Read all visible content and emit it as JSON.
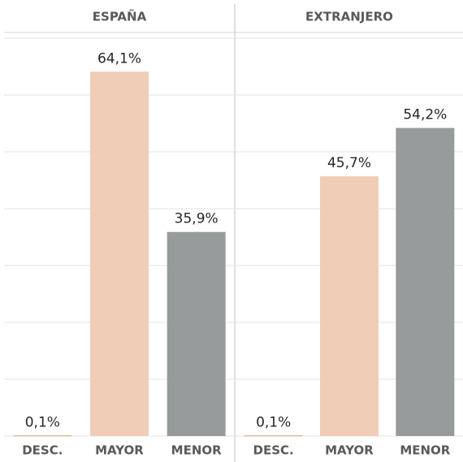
{
  "chart_data": [
    {
      "type": "bar",
      "title": "ESPAÑA",
      "categories": [
        "DESC.",
        "MAYOR",
        "MENOR"
      ],
      "values": [
        0.1,
        64.1,
        35.9
      ],
      "value_labels": [
        "0,1%",
        "64,1%",
        "35,9%"
      ],
      "colors": [
        "#c9a26b",
        "#f0cdb6",
        "#989b9b"
      ],
      "ylim": [
        0,
        70
      ],
      "yticks": [
        0,
        10,
        20,
        30,
        40,
        50,
        60,
        70
      ],
      "grid": true
    },
    {
      "type": "bar",
      "title": "EXTRANJERO",
      "categories": [
        "DESC.",
        "MAYOR",
        "MENOR"
      ],
      "values": [
        0.1,
        45.7,
        54.2
      ],
      "value_labels": [
        "0,1%",
        "45,7%",
        "54,2%"
      ],
      "colors": [
        "#c9a26b",
        "#f0cdb6",
        "#989b9b"
      ],
      "ylim": [
        0,
        70
      ],
      "yticks": [
        0,
        10,
        20,
        30,
        40,
        50,
        60,
        70
      ],
      "grid": true
    }
  ]
}
